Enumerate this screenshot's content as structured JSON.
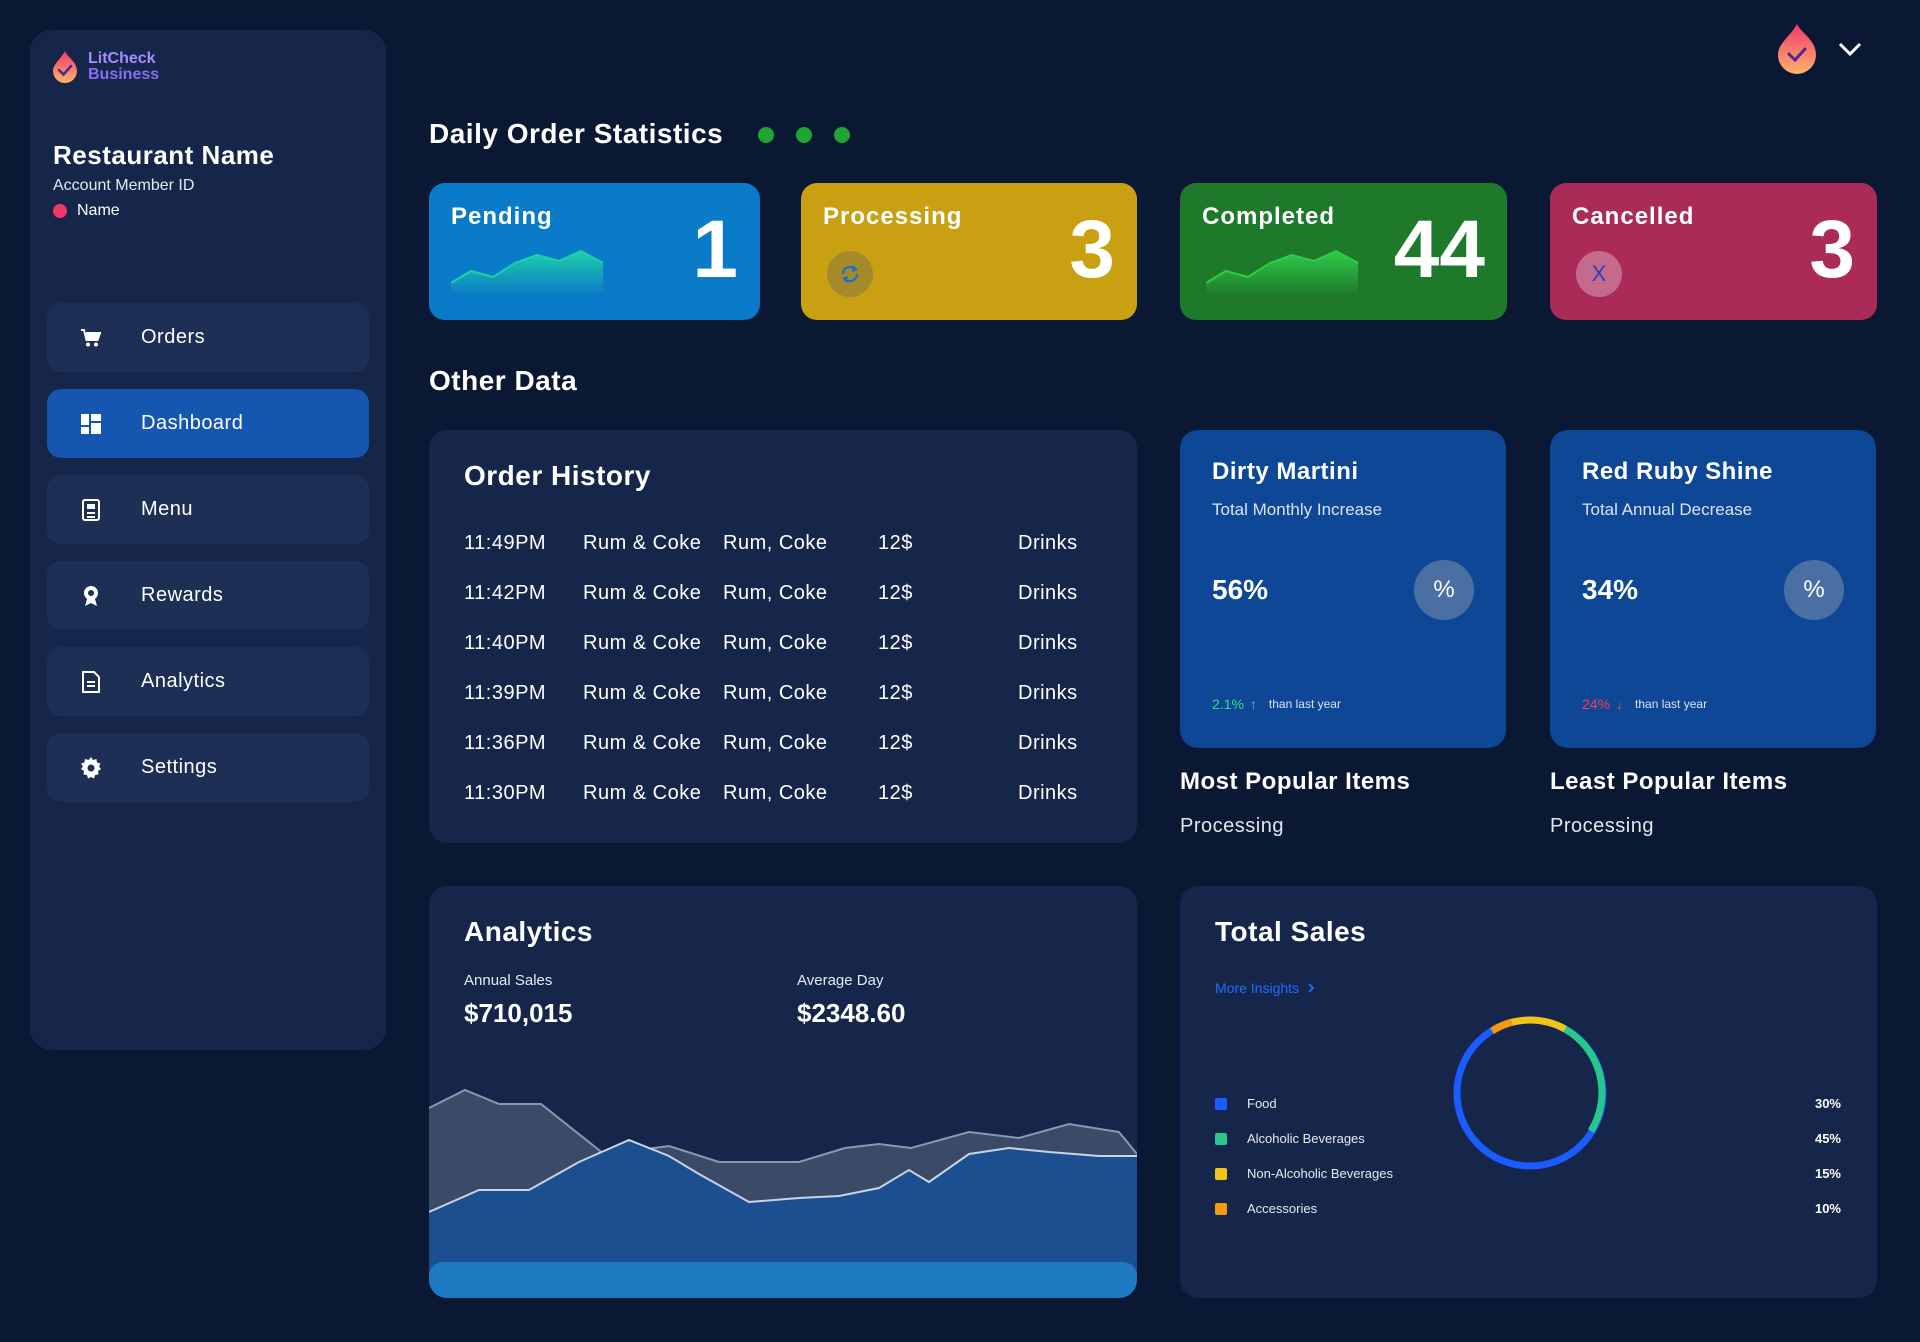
{
  "brand": {
    "line1": "LitCheck",
    "line2": "Business"
  },
  "account": {
    "restaurant_name": "Restaurant Name",
    "member_id": "Account Member ID",
    "name": "Name"
  },
  "nav": [
    {
      "label": "Orders",
      "icon": "cart-icon"
    },
    {
      "label": "Dashboard",
      "icon": "dashboard-icon",
      "active": true
    },
    {
      "label": "Menu",
      "icon": "menu-icon"
    },
    {
      "label": "Rewards",
      "icon": "rewards-icon"
    },
    {
      "label": "Analytics",
      "icon": "analytics-icon"
    },
    {
      "label": "Settings",
      "icon": "gear-icon"
    }
  ],
  "daily": {
    "title": "Daily Order Statistics",
    "cards": [
      {
        "label": "Pending",
        "value": "1",
        "color": "#0a7bc8"
      },
      {
        "label": "Processing",
        "value": "3",
        "color": "#c9a012"
      },
      {
        "label": "Completed",
        "value": "44",
        "color": "#1e7a2a"
      },
      {
        "label": "Cancelled",
        "value": "3",
        "color": "#ab2b58",
        "icon_text": "X"
      }
    ]
  },
  "other": {
    "title": "Other Data"
  },
  "order_history": {
    "title": "Order History",
    "rows": [
      {
        "time": "11:49PM",
        "item": "Rum & Coke",
        "ingredients": "Rum, Coke",
        "price": "12$",
        "category": "Drinks"
      },
      {
        "time": "11:42PM",
        "item": "Rum & Coke",
        "ingredients": "Rum, Coke",
        "price": "12$",
        "category": "Drinks"
      },
      {
        "time": "11:40PM",
        "item": "Rum & Coke",
        "ingredients": "Rum, Coke",
        "price": "12$",
        "category": "Drinks"
      },
      {
        "time": "11:39PM",
        "item": "Rum & Coke",
        "ingredients": "Rum, Coke",
        "price": "12$",
        "category": "Drinks"
      },
      {
        "time": "11:36PM",
        "item": "Rum & Coke",
        "ingredients": "Rum, Coke",
        "price": "12$",
        "category": "Drinks"
      },
      {
        "time": "11:30PM",
        "item": "Rum & Coke",
        "ingredients": "Rum, Coke",
        "price": "12$",
        "category": "Drinks"
      }
    ]
  },
  "promos": [
    {
      "title": "Dirty Martini",
      "subtitle": "Total Monthly Increase",
      "percent": "56%",
      "icon_text": "%",
      "delta": "2.1%",
      "delta_arrow": "↑",
      "delta_color": "#2ee08a",
      "delta_label": "than last year"
    },
    {
      "title": "Red Ruby Shine",
      "subtitle": "Total Annual Decrease",
      "percent": "34%",
      "icon_text": "%",
      "delta": "24%",
      "delta_arrow": "↓",
      "delta_color": "#ff3b4f",
      "delta_label": "than last year"
    }
  ],
  "popular": [
    {
      "title": "Most Popular Items",
      "status": "Processing"
    },
    {
      "title": "Least Popular Items",
      "status": "Processing"
    }
  ],
  "analytics": {
    "title": "Analytics",
    "annual_label": "Annual Sales",
    "annual_value": "$710,015",
    "avg_label": "Average Day",
    "avg_value": "$2348.60"
  },
  "total_sales": {
    "title": "Total Sales",
    "more_insights": "More Insights",
    "legend": [
      {
        "name": "Food",
        "percent": "30%",
        "color": "#1a5cff"
      },
      {
        "name": "Alcoholic Beverages",
        "percent": "45%",
        "color": "#27c98a"
      },
      {
        "name": "Non-Alcoholic Beverages",
        "percent": "15%",
        "color": "#f0c419"
      },
      {
        "name": "Accessories",
        "percent": "10%",
        "color": "#f39a10"
      }
    ]
  }
}
